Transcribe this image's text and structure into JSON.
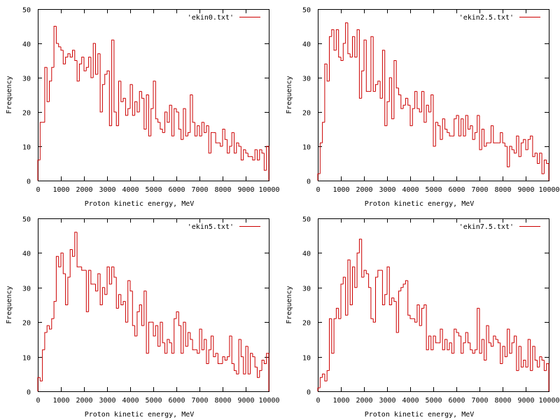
{
  "colors": {
    "series": "#cc0000",
    "axis": "#000000",
    "background": "#ffffff"
  },
  "chart_data": [
    {
      "type": "histogram-step",
      "legend": "'ekin0.txt'",
      "legend_position": "top-right",
      "xlabel": "Proton kinetic energy, MeV",
      "ylabel": "Frequency",
      "xlim": [
        0,
        10000
      ],
      "ylim": [
        0,
        50
      ],
      "xticks": [
        0,
        1000,
        2000,
        3000,
        4000,
        5000,
        6000,
        7000,
        8000,
        9000,
        10000
      ],
      "yticks": [
        0,
        10,
        20,
        30,
        40,
        50
      ],
      "bin_width": 100,
      "x": [
        0,
        100,
        200,
        300,
        400,
        500,
        600,
        700,
        800,
        900,
        1000,
        1100,
        1200,
        1300,
        1400,
        1500,
        1600,
        1700,
        1800,
        1900,
        2000,
        2100,
        2200,
        2300,
        2400,
        2500,
        2600,
        2700,
        2800,
        2900,
        3000,
        3100,
        3200,
        3300,
        3400,
        3500,
        3600,
        3700,
        3800,
        3900,
        4000,
        4100,
        4200,
        4300,
        4400,
        4500,
        4600,
        4700,
        4800,
        4900,
        5000,
        5100,
        5200,
        5300,
        5400,
        5500,
        5600,
        5700,
        5800,
        5900,
        6000,
        6100,
        6200,
        6300,
        6400,
        6500,
        6600,
        6700,
        6800,
        6900,
        7000,
        7100,
        7200,
        7300,
        7400,
        7500,
        7600,
        7700,
        7800,
        7900,
        8000,
        8100,
        8200,
        8300,
        8400,
        8500,
        8600,
        8700,
        8800,
        8900,
        9000,
        9100,
        9200,
        9300,
        9400,
        9500,
        9600,
        9700,
        9800,
        9900
      ],
      "values": [
        6,
        17,
        17,
        33,
        23,
        29,
        33,
        45,
        40,
        39,
        38,
        34,
        36,
        37,
        36,
        38,
        35,
        29,
        34,
        36,
        32,
        33,
        36,
        30,
        40,
        31,
        37,
        20,
        28,
        31,
        32,
        16,
        41,
        20,
        16,
        29,
        23,
        24,
        19,
        21,
        28,
        19,
        23,
        20,
        26,
        24,
        15,
        25,
        13,
        21,
        29,
        18,
        17,
        15,
        14,
        20,
        17,
        22,
        13,
        21,
        20,
        15,
        12,
        21,
        13,
        14,
        25,
        17,
        13,
        16,
        13,
        17,
        14,
        16,
        8,
        14,
        14,
        11,
        11,
        10,
        15,
        12,
        8,
        10,
        14,
        8,
        11,
        10,
        6,
        9,
        8,
        7,
        7,
        6,
        9,
        6,
        9,
        8,
        3,
        10
      ]
    },
    {
      "type": "histogram-step",
      "legend": "'ekin2.5.txt'",
      "legend_position": "top-right",
      "xlabel": "Proton kinetic energy, MeV",
      "ylabel": "Frequency",
      "xlim": [
        0,
        10000
      ],
      "ylim": [
        0,
        50
      ],
      "xticks": [
        0,
        1000,
        2000,
        3000,
        4000,
        5000,
        6000,
        7000,
        8000,
        9000,
        10000
      ],
      "yticks": [
        0,
        10,
        20,
        30,
        40,
        50
      ],
      "bin_width": 100,
      "x": [
        0,
        100,
        200,
        300,
        400,
        500,
        600,
        700,
        800,
        900,
        1000,
        1100,
        1200,
        1300,
        1400,
        1500,
        1600,
        1700,
        1800,
        1900,
        2000,
        2100,
        2200,
        2300,
        2400,
        2500,
        2600,
        2700,
        2800,
        2900,
        3000,
        3100,
        3200,
        3300,
        3400,
        3500,
        3600,
        3700,
        3800,
        3900,
        4000,
        4100,
        4200,
        4300,
        4400,
        4500,
        4600,
        4700,
        4800,
        4900,
        5000,
        5100,
        5200,
        5300,
        5400,
        5500,
        5600,
        5700,
        5800,
        5900,
        6000,
        6100,
        6200,
        6300,
        6400,
        6500,
        6600,
        6700,
        6800,
        6900,
        7000,
        7100,
        7200,
        7300,
        7400,
        7500,
        7600,
        7700,
        7800,
        7900,
        8000,
        8100,
        8200,
        8300,
        8400,
        8500,
        8600,
        8700,
        8800,
        8900,
        9000,
        9100,
        9200,
        9300,
        9400,
        9500,
        9600,
        9700,
        9800,
        9900
      ],
      "values": [
        2,
        11,
        17,
        34,
        29,
        42,
        44,
        38,
        44,
        36,
        35,
        40,
        46,
        37,
        36,
        42,
        36,
        44,
        24,
        32,
        41,
        26,
        26,
        42,
        26,
        28,
        29,
        24,
        38,
        16,
        23,
        30,
        18,
        35,
        27,
        25,
        21,
        22,
        24,
        22,
        16,
        21,
        26,
        21,
        20,
        26,
        17,
        22,
        20,
        25,
        10,
        17,
        16,
        12,
        18,
        15,
        14,
        13,
        13,
        18,
        19,
        13,
        18,
        13,
        19,
        15,
        16,
        12,
        14,
        19,
        9,
        15,
        10,
        11,
        11,
        16,
        11,
        11,
        11,
        14,
        11,
        10,
        4,
        10,
        9,
        8,
        13,
        7,
        11,
        12,
        9,
        12,
        13,
        7,
        8,
        5,
        8,
        2,
        6,
        5
      ]
    },
    {
      "type": "histogram-step",
      "legend": "'ekin5.txt'",
      "legend_position": "top-right",
      "xlabel": "Proton kinetic energy, MeV",
      "ylabel": "Frequency",
      "xlim": [
        0,
        10000
      ],
      "ylim": [
        0,
        50
      ],
      "xticks": [
        0,
        1000,
        2000,
        3000,
        4000,
        5000,
        6000,
        7000,
        8000,
        9000,
        10000
      ],
      "yticks": [
        0,
        10,
        20,
        30,
        40,
        50
      ],
      "bin_width": 100,
      "x": [
        0,
        100,
        200,
        300,
        400,
        500,
        600,
        700,
        800,
        900,
        1000,
        1100,
        1200,
        1300,
        1400,
        1500,
        1600,
        1700,
        1800,
        1900,
        2000,
        2100,
        2200,
        2300,
        2400,
        2500,
        2600,
        2700,
        2800,
        2900,
        3000,
        3100,
        3200,
        3300,
        3400,
        3500,
        3600,
        3700,
        3800,
        3900,
        4000,
        4100,
        4200,
        4300,
        4400,
        4500,
        4600,
        4700,
        4800,
        4900,
        5000,
        5100,
        5200,
        5300,
        5400,
        5500,
        5600,
        5700,
        5800,
        5900,
        6000,
        6100,
        6200,
        6300,
        6400,
        6500,
        6600,
        6700,
        6800,
        6900,
        7000,
        7100,
        7200,
        7300,
        7400,
        7500,
        7600,
        7700,
        7800,
        7900,
        8000,
        8100,
        8200,
        8300,
        8400,
        8500,
        8600,
        8700,
        8800,
        8900,
        9000,
        9100,
        9200,
        9300,
        9400,
        9500,
        9600,
        9700,
        9800,
        9900
      ],
      "values": [
        4,
        3,
        12,
        17,
        19,
        18,
        21,
        26,
        39,
        36,
        40,
        34,
        25,
        33,
        41,
        39,
        46,
        36,
        36,
        35,
        35,
        23,
        35,
        31,
        31,
        29,
        34,
        25,
        30,
        28,
        36,
        31,
        36,
        33,
        24,
        28,
        25,
        26,
        20,
        32,
        29,
        19,
        16,
        23,
        25,
        19,
        29,
        11,
        20,
        20,
        16,
        19,
        13,
        20,
        14,
        11,
        15,
        14,
        11,
        21,
        23,
        19,
        11,
        20,
        13,
        17,
        15,
        12,
        12,
        11,
        18,
        12,
        15,
        8,
        12,
        16,
        10,
        11,
        8,
        8,
        10,
        9,
        10,
        16,
        8,
        6,
        5,
        15,
        10,
        5,
        13,
        5,
        11,
        10,
        7,
        4,
        6,
        9,
        8,
        11
      ]
    },
    {
      "type": "histogram-step",
      "legend": "'ekin7.5.txt'",
      "legend_position": "top-right",
      "xlabel": "Proton kinetic energy, MeV",
      "ylabel": "Frequency",
      "xlim": [
        0,
        10000
      ],
      "ylim": [
        0,
        50
      ],
      "xticks": [
        0,
        1000,
        2000,
        3000,
        4000,
        5000,
        6000,
        7000,
        8000,
        9000,
        10000
      ],
      "yticks": [
        0,
        10,
        20,
        30,
        40,
        50
      ],
      "bin_width": 100,
      "x": [
        0,
        100,
        200,
        300,
        400,
        500,
        600,
        700,
        800,
        900,
        1000,
        1100,
        1200,
        1300,
        1400,
        1500,
        1600,
        1700,
        1800,
        1900,
        2000,
        2100,
        2200,
        2300,
        2400,
        2500,
        2600,
        2700,
        2800,
        2900,
        3000,
        3100,
        3200,
        3300,
        3400,
        3500,
        3600,
        3700,
        3800,
        3900,
        4000,
        4100,
        4200,
        4300,
        4400,
        4500,
        4600,
        4700,
        4800,
        4900,
        5000,
        5100,
        5200,
        5300,
        5400,
        5500,
        5600,
        5700,
        5800,
        5900,
        6000,
        6100,
        6200,
        6300,
        6400,
        6500,
        6600,
        6700,
        6800,
        6900,
        7000,
        7100,
        7200,
        7300,
        7400,
        7500,
        7600,
        7700,
        7800,
        7900,
        8000,
        8100,
        8200,
        8300,
        8400,
        8500,
        8600,
        8700,
        8800,
        8900,
        9000,
        9100,
        9200,
        9300,
        9400,
        9500,
        9600,
        9700,
        9800,
        9900
      ],
      "values": [
        1,
        4,
        5,
        3,
        6,
        21,
        11,
        21,
        24,
        21,
        31,
        33,
        22,
        38,
        25,
        36,
        30,
        40,
        44,
        33,
        35,
        34,
        30,
        21,
        20,
        33,
        35,
        35,
        25,
        28,
        36,
        25,
        27,
        26,
        17,
        29,
        30,
        31,
        32,
        22,
        21,
        21,
        20,
        25,
        19,
        24,
        25,
        12,
        16,
        12,
        16,
        14,
        14,
        18,
        12,
        15,
        12,
        14,
        11,
        18,
        17,
        16,
        11,
        14,
        17,
        14,
        12,
        11,
        12,
        24,
        11,
        15,
        9,
        19,
        14,
        13,
        16,
        15,
        14,
        8,
        13,
        10,
        18,
        11,
        14,
        16,
        6,
        13,
        7,
        9,
        7,
        15,
        6,
        13,
        9,
        7,
        10,
        9,
        6,
        8
      ]
    }
  ]
}
